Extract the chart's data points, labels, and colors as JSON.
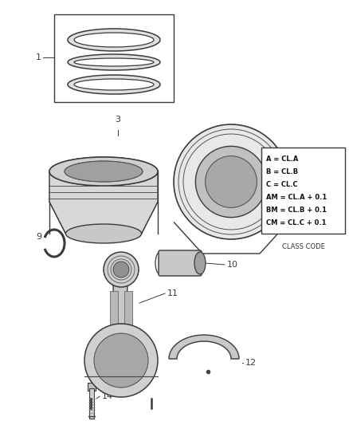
{
  "bg_color": "#ffffff",
  "line_color": "#3a3a3a",
  "legend_lines": [
    "A = CL.A",
    "B = CL.B",
    "C = CL.C",
    "AM = CL.A + 0.1",
    "BM = CL.B + 0.1",
    "CM = CL.C + 0.1"
  ],
  "legend_footer": "CLASS CODE",
  "fig_w": 4.38,
  "fig_h": 5.33,
  "dpi": 100
}
